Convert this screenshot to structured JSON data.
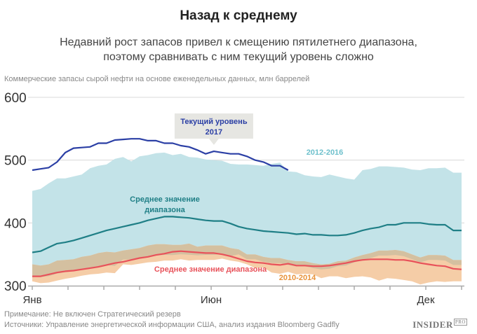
{
  "header": {
    "title": "Назад к среднему",
    "subtitle_line1": "Недавний рост запасов привел к смещению пятилетнего диапазона,",
    "subtitle_line2": "поэтому сравнивать с ним текущий уровень сложно",
    "units": "Коммерческие запасы сырой нефти на основе еженедельных данных, млн баррелей"
  },
  "footer": {
    "note": "Примечание: Не включен Стратегический резерв",
    "sources": "Источники: Управление энергетической информации США, анализ издания Bloomberg Gadfly",
    "logo": "INSIDER",
    "logo_badge": "PRO"
  },
  "chart_data": {
    "type": "area",
    "title": "Назад к среднему",
    "ylabel": "млн баррелей",
    "ylim": [
      300,
      600
    ],
    "yticks": [
      300,
      400,
      500,
      600
    ],
    "xlim": [
      0,
      52
    ],
    "xticks": [
      0,
      4.33,
      8.67,
      13,
      17.33,
      21.67,
      26,
      30.33,
      34.67,
      39,
      43.33,
      47.67,
      52
    ],
    "xtick_labels": [
      {
        "pos": 0,
        "label": "Янв"
      },
      {
        "pos": 21.67,
        "label": "Июн"
      },
      {
        "pos": 47.67,
        "label": "Дек"
      }
    ],
    "grid": true,
    "colors": {
      "band_2012_2016": "#c3e3e8",
      "band_2010_2014": "#f5cda7",
      "band_overlap": "#d4c0a0",
      "current_2017": "#2b3fa5",
      "avg_2012_2016": "#1f7f86",
      "avg_2010_2014": "#e8525a",
      "label_2012_2016": "#6ec0cc",
      "label_2010_2014": "#e8923a",
      "callout_bg": "#e6e6e2"
    },
    "series": [
      {
        "name": "2012-2016",
        "kind": "band",
        "x": [
          0,
          1,
          2,
          3,
          4,
          5,
          6,
          7,
          8,
          9,
          10,
          11,
          12,
          13,
          14,
          15,
          16,
          17,
          18,
          19,
          20,
          21,
          22,
          23,
          24,
          25,
          26,
          27,
          28,
          29,
          30,
          31,
          32,
          33,
          34,
          35,
          36,
          37,
          38,
          39,
          40,
          41,
          42,
          43,
          44,
          45,
          46,
          47,
          48,
          49,
          50,
          51,
          52
        ],
        "high": [
          451,
          454,
          463,
          471,
          471,
          474,
          477,
          487,
          491,
          493,
          502,
          505,
          498,
          506,
          508,
          511,
          512,
          508,
          510,
          505,
          504,
          501,
          500,
          499,
          494,
          493,
          493,
          492,
          491,
          494,
          496,
          482,
          481,
          476,
          474,
          473,
          477,
          474,
          471,
          469,
          484,
          486,
          490,
          490,
          489,
          488,
          485,
          484,
          487,
          487,
          488,
          480,
          480
        ],
        "low": [
          334,
          332,
          334,
          340,
          341,
          342,
          346,
          348,
          352,
          354,
          353,
          356,
          358,
          360,
          364,
          366,
          366,
          365,
          365,
          367,
          362,
          364,
          364,
          364,
          360,
          358,
          350,
          350,
          346,
          344,
          344,
          341,
          339,
          339,
          336,
          334,
          335,
          339,
          340,
          345,
          349,
          352,
          356,
          356,
          357,
          355,
          350,
          345,
          349,
          349,
          348,
          341,
          341
        ]
      },
      {
        "name": "2010-2014",
        "kind": "band",
        "x": [
          0,
          1,
          2,
          3,
          4,
          5,
          6,
          7,
          8,
          9,
          10,
          11,
          12,
          13,
          14,
          15,
          16,
          17,
          18,
          19,
          20,
          21,
          22,
          23,
          24,
          25,
          26,
          27,
          28,
          29,
          30,
          31,
          32,
          33,
          34,
          35,
          36,
          37,
          38,
          39,
          40,
          41,
          42,
          43,
          44,
          45,
          46,
          47,
          48,
          49,
          50,
          51,
          52
        ],
        "high": [
          334,
          332,
          334,
          340,
          341,
          342,
          346,
          348,
          352,
          354,
          353,
          356,
          358,
          360,
          364,
          366,
          366,
          365,
          365,
          367,
          362,
          364,
          364,
          364,
          360,
          350,
          347,
          345,
          340,
          337,
          337,
          336,
          334,
          333,
          333,
          333,
          334,
          336,
          338,
          341,
          344,
          346,
          348,
          350,
          350,
          350,
          349,
          343,
          345,
          345,
          344,
          338,
          337
        ],
        "low": [
          307,
          304,
          305,
          308,
          311,
          313,
          316,
          318,
          319,
          321,
          320,
          334,
          333,
          335,
          337,
          338,
          340,
          340,
          342,
          340,
          341,
          341,
          341,
          343,
          340,
          338,
          334,
          328,
          329,
          321,
          319,
          322,
          318,
          319,
          318,
          312,
          315,
          315,
          312,
          314,
          315,
          313,
          308,
          312,
          311,
          309,
          307,
          302,
          305,
          307,
          306,
          307,
          307
        ]
      },
      {
        "name": "Текущий уровень 2017",
        "kind": "line",
        "x": [
          0,
          1,
          2,
          3,
          4,
          5,
          6,
          7,
          8,
          9,
          10,
          11,
          12,
          13,
          14,
          15,
          16,
          17,
          18,
          19,
          20,
          21,
          22,
          23,
          24,
          25,
          26,
          27,
          28,
          29,
          30,
          31
        ],
        "values": [
          484,
          486,
          488,
          497,
          512,
          519,
          520,
          521,
          527,
          527,
          532,
          533,
          534,
          534,
          531,
          531,
          527,
          527,
          523,
          521,
          516,
          510,
          514,
          512,
          510,
          510,
          506,
          500,
          497,
          491,
          491,
          484
        ]
      },
      {
        "name": "Среднее значение диапазона (2012-2016)",
        "kind": "line",
        "x": [
          0,
          1,
          2,
          3,
          4,
          5,
          6,
          7,
          8,
          9,
          10,
          11,
          12,
          13,
          14,
          15,
          16,
          17,
          18,
          19,
          20,
          21,
          22,
          23,
          24,
          25,
          26,
          27,
          28,
          29,
          30,
          31,
          32,
          33,
          34,
          35,
          36,
          37,
          38,
          39,
          40,
          41,
          42,
          43,
          44,
          45,
          46,
          47,
          48,
          49,
          50,
          51,
          52
        ],
        "values": [
          353,
          355,
          361,
          367,
          369,
          372,
          376,
          380,
          384,
          388,
          391,
          394,
          397,
          400,
          404,
          407,
          410,
          410,
          409,
          408,
          406,
          404,
          403,
          403,
          399,
          394,
          391,
          389,
          387,
          386,
          385,
          384,
          382,
          383,
          381,
          381,
          380,
          380,
          381,
          384,
          388,
          391,
          393,
          397,
          397,
          400,
          400,
          400,
          398,
          397,
          397,
          388,
          388
        ]
      },
      {
        "name": "Среднее значение диапазона (2010-2014)",
        "kind": "line",
        "x": [
          0,
          1,
          2,
          3,
          4,
          5,
          6,
          7,
          8,
          9,
          10,
          11,
          12,
          13,
          14,
          15,
          16,
          17,
          18,
          19,
          20,
          21,
          22,
          23,
          24,
          25,
          26,
          27,
          28,
          29,
          30,
          31,
          32,
          33,
          34,
          35,
          36,
          37,
          38,
          39,
          40,
          41,
          42,
          43,
          44,
          45,
          46,
          47,
          48,
          49,
          50,
          51,
          52
        ],
        "values": [
          315,
          315,
          318,
          321,
          323,
          324,
          326,
          328,
          330,
          333,
          336,
          338,
          341,
          344,
          346,
          349,
          351,
          354,
          355,
          354,
          353,
          352,
          352,
          350,
          347,
          343,
          339,
          337,
          336,
          334,
          333,
          335,
          332,
          332,
          331,
          331,
          332,
          334,
          336,
          339,
          341,
          342,
          342,
          342,
          341,
          341,
          339,
          336,
          334,
          332,
          331,
          327,
          326
        ]
      }
    ],
    "annotations": [
      {
        "text_line1": "Текущий уровень",
        "text_line2": "2017",
        "target_series": "Текущий уровень 2017",
        "at_x": 22
      },
      {
        "text_line1": "Среднее значение",
        "text_line2": "диапазона",
        "target_series": "Среднее значение диапазона (2012-2016)"
      },
      {
        "text": "Среднее значение диапазона",
        "target_series": "Среднее значение диапазона (2010-2014)"
      },
      {
        "text": "2012-2016",
        "target_series": "2012-2016"
      },
      {
        "text": "2010-2014",
        "target_series": "2010-2014"
      }
    ]
  }
}
